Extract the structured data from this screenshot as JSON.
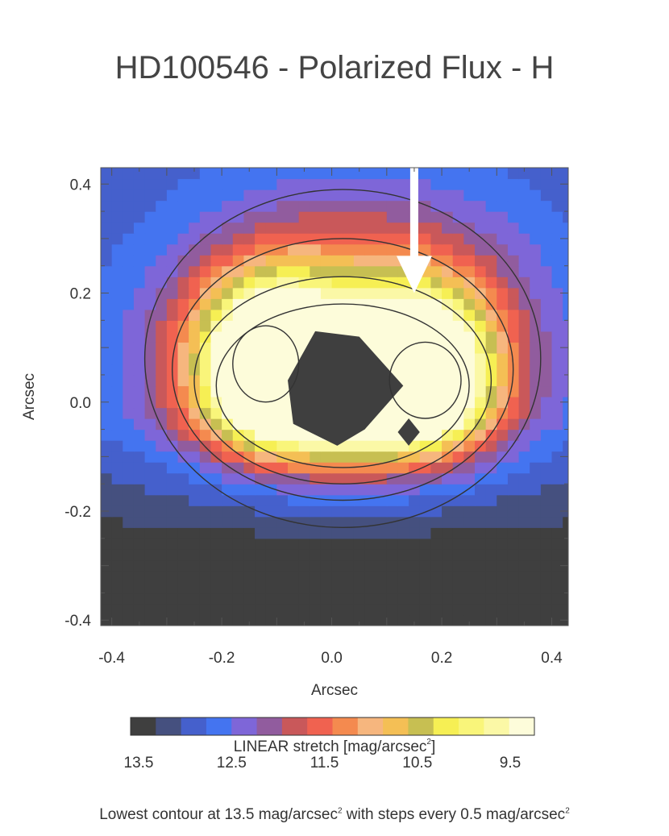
{
  "chart_data": {
    "type": "heatmap",
    "title": "HD100546 - Polarized Flux - H",
    "xlabel": "Arcsec",
    "ylabel": "Arcsec",
    "xlim": [
      -0.42,
      0.43
    ],
    "ylim": [
      -0.41,
      0.43
    ],
    "x_ticks": [
      "-0.4",
      "-0.2",
      "0.0",
      "0.2",
      "0.4"
    ],
    "x_tick_values": [
      -0.4,
      -0.2,
      0.0,
      0.2,
      0.4
    ],
    "y_ticks": [
      "-0.4",
      "-0.2",
      "0.0",
      "0.2",
      "0.4"
    ],
    "y_tick_values": [
      -0.4,
      -0.2,
      0.0,
      0.2,
      0.4
    ],
    "arrow": {
      "x": 0.15,
      "y_from": 0.43,
      "y_to": 0.2,
      "color": "#ffffff"
    },
    "colorbar": {
      "colors": [
        "#3f3f3f",
        "#45507f",
        "#4560cc",
        "#4474f0",
        "#7e66d8",
        "#915c9e",
        "#c9585a",
        "#f06250",
        "#f48a4f",
        "#f6b67e",
        "#f4bf55",
        "#c7bf52",
        "#f6ef54",
        "#f9f57a",
        "#fbf8a6",
        "#fdfcda"
      ],
      "tick_labels": [
        "13.5",
        "12.5",
        "11.5",
        "10.5",
        "9.5"
      ],
      "tick_values": [
        13.5,
        12.5,
        11.5,
        10.5,
        9.5
      ]
    },
    "stretch_label_main": "LINEAR stretch [mag/arcsec",
    "stretch_label_sup": "2",
    "stretch_label_end": "]",
    "contour_note": {
      "p1": "Lowest contour at 13.5 mag/arcsec",
      "sup1": "2",
      "p2": " with steps every 0.5 mag/arcsec",
      "sup2": "2"
    }
  }
}
